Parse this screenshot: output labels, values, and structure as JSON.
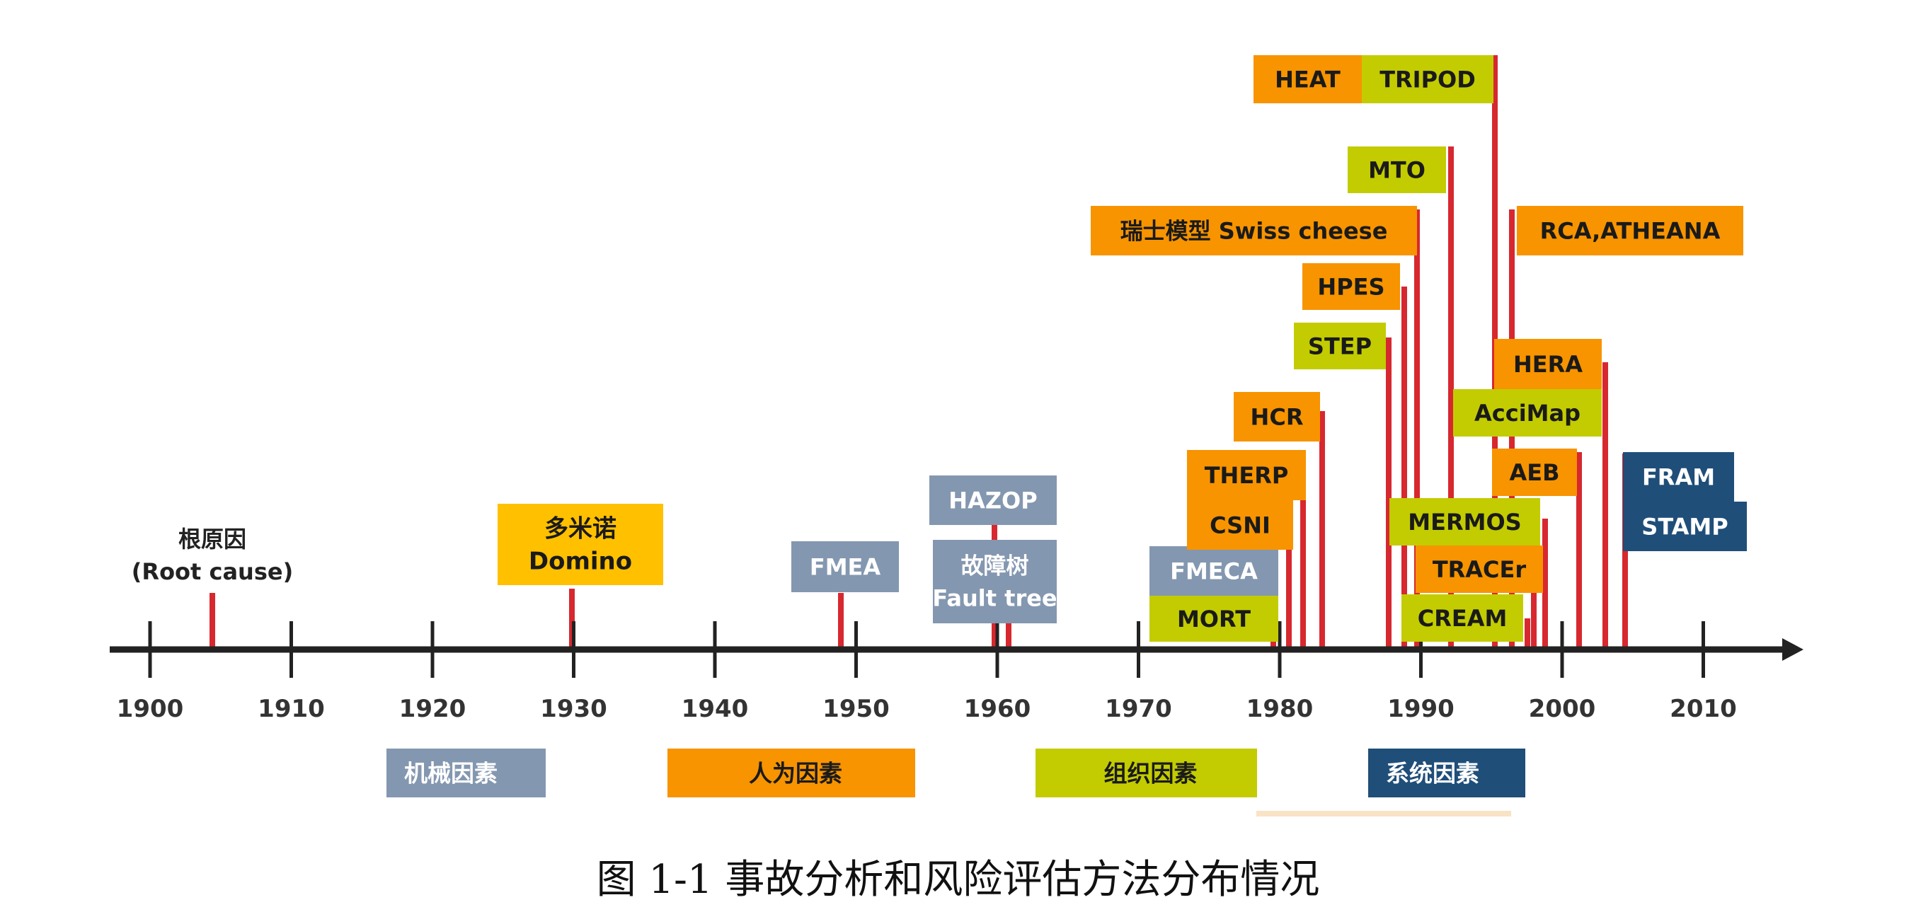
{
  "colors": {
    "orange": "#F79400",
    "yellow": "#FFC000",
    "olive": "#C3CC00",
    "grayblue": "#8497B0",
    "navy": "#1F4E79",
    "marker": "#D7282F",
    "axis": "#222222"
  },
  "axis": {
    "start_year": 1900,
    "end_year": 2010,
    "tick_step": 10
  },
  "methods": [
    {
      "name": "根原因\n(Root cause)",
      "year": 1904,
      "style": "plain"
    },
    {
      "name": "多米诺\nDomino",
      "year": 1930,
      "color": "yellow"
    },
    {
      "name": "FMEA",
      "year": 1949,
      "color": "grayblue"
    },
    {
      "name": "HAZOP",
      "year": 1960,
      "color": "grayblue"
    },
    {
      "name": "故障树\nFault tree",
      "year": 1961,
      "color": "grayblue"
    },
    {
      "name": "FMECA",
      "year": 1980,
      "color": "grayblue"
    },
    {
      "name": "MORT",
      "year": 1980,
      "color": "olive"
    },
    {
      "name": "CSNI",
      "year": 1981,
      "color": "orange"
    },
    {
      "name": "THERP",
      "year": 1982,
      "color": "orange"
    },
    {
      "name": "HCR",
      "year": 1984,
      "color": "orange"
    },
    {
      "name": "STEP",
      "year": 1988,
      "color": "olive"
    },
    {
      "name": "HPES",
      "year": 1989,
      "color": "orange"
    },
    {
      "name": "瑞士模型 Swiss cheese",
      "year": 1990,
      "color": "orange"
    },
    {
      "name": "MTO",
      "year": 1993,
      "color": "olive"
    },
    {
      "name": "HEAT",
      "year": 1996,
      "color": "orange"
    },
    {
      "name": "TRIPOD",
      "year": 1996,
      "color": "olive"
    },
    {
      "name": "RCA,ATHEANA",
      "year": 1997,
      "color": "orange"
    },
    {
      "name": "AcciMap",
      "year": 1997,
      "color": "olive"
    },
    {
      "name": "HERA",
      "year": 2004,
      "color": "orange"
    },
    {
      "name": "AEB",
      "year": 2002,
      "color": "orange"
    },
    {
      "name": "MERMOS",
      "year": 2000,
      "color": "olive"
    },
    {
      "name": "TRACEr",
      "year": 1999,
      "color": "orange"
    },
    {
      "name": "CREAM",
      "year": 1998,
      "color": "olive"
    },
    {
      "name": "FRAM",
      "year": 2005,
      "color": "navy"
    },
    {
      "name": "STAMP",
      "year": 2005,
      "color": "navy"
    }
  ],
  "legend": [
    {
      "label": "机械因素",
      "color": "grayblue"
    },
    {
      "label": "人为因素",
      "color": "orange"
    },
    {
      "label": "组织因素",
      "color": "olive"
    },
    {
      "label": "系统因素",
      "color": "navy"
    }
  ],
  "caption": "图 1-1  事故分析和风险评估方法分布情况"
}
